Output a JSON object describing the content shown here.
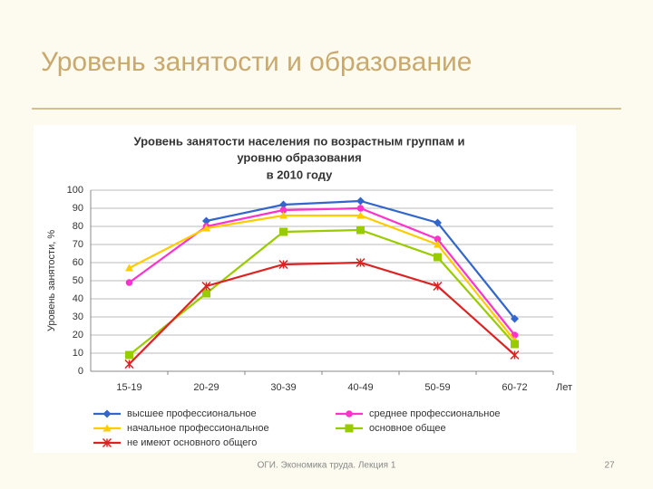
{
  "title": "Уровень занятости и образование",
  "footer": "ОГИ. Экономика труда. Лекция 1",
  "page_number": "27",
  "chart_data": {
    "type": "line",
    "title": [
      "Уровень занятости населения по возрастным группам и",
      "уровню образования",
      "в 2010 году"
    ],
    "xlabel": "Лет",
    "ylabel": "Уровень занятости, %",
    "categories": [
      "15-19",
      "20-29",
      "30-39",
      "40-49",
      "50-59",
      "60-72"
    ],
    "ylim": [
      0,
      100
    ],
    "yticks": [
      0,
      10,
      20,
      30,
      40,
      50,
      60,
      70,
      80,
      90,
      100
    ],
    "grid": true,
    "series": [
      {
        "name": "высшее профессиональное",
        "color": "#3366cc",
        "marker": "diamond",
        "values": [
          null,
          83,
          92,
          94,
          82,
          29
        ]
      },
      {
        "name": "среднее профессиональное",
        "color": "#ff33cc",
        "marker": "circle",
        "values": [
          49,
          80,
          89,
          90,
          73,
          20
        ]
      },
      {
        "name": "начальное профессиональное",
        "color": "#ffcc00",
        "marker": "triangle",
        "values": [
          57,
          79,
          86,
          86,
          70,
          17
        ]
      },
      {
        "name": "основное общее",
        "color": "#99cc00",
        "marker": "square",
        "values": [
          9,
          43,
          77,
          78,
          63,
          15
        ]
      },
      {
        "name": "не имеют основного общего",
        "color": "#dd2222",
        "marker": "star",
        "values": [
          4,
          47,
          59,
          60,
          47,
          9
        ]
      }
    ]
  }
}
